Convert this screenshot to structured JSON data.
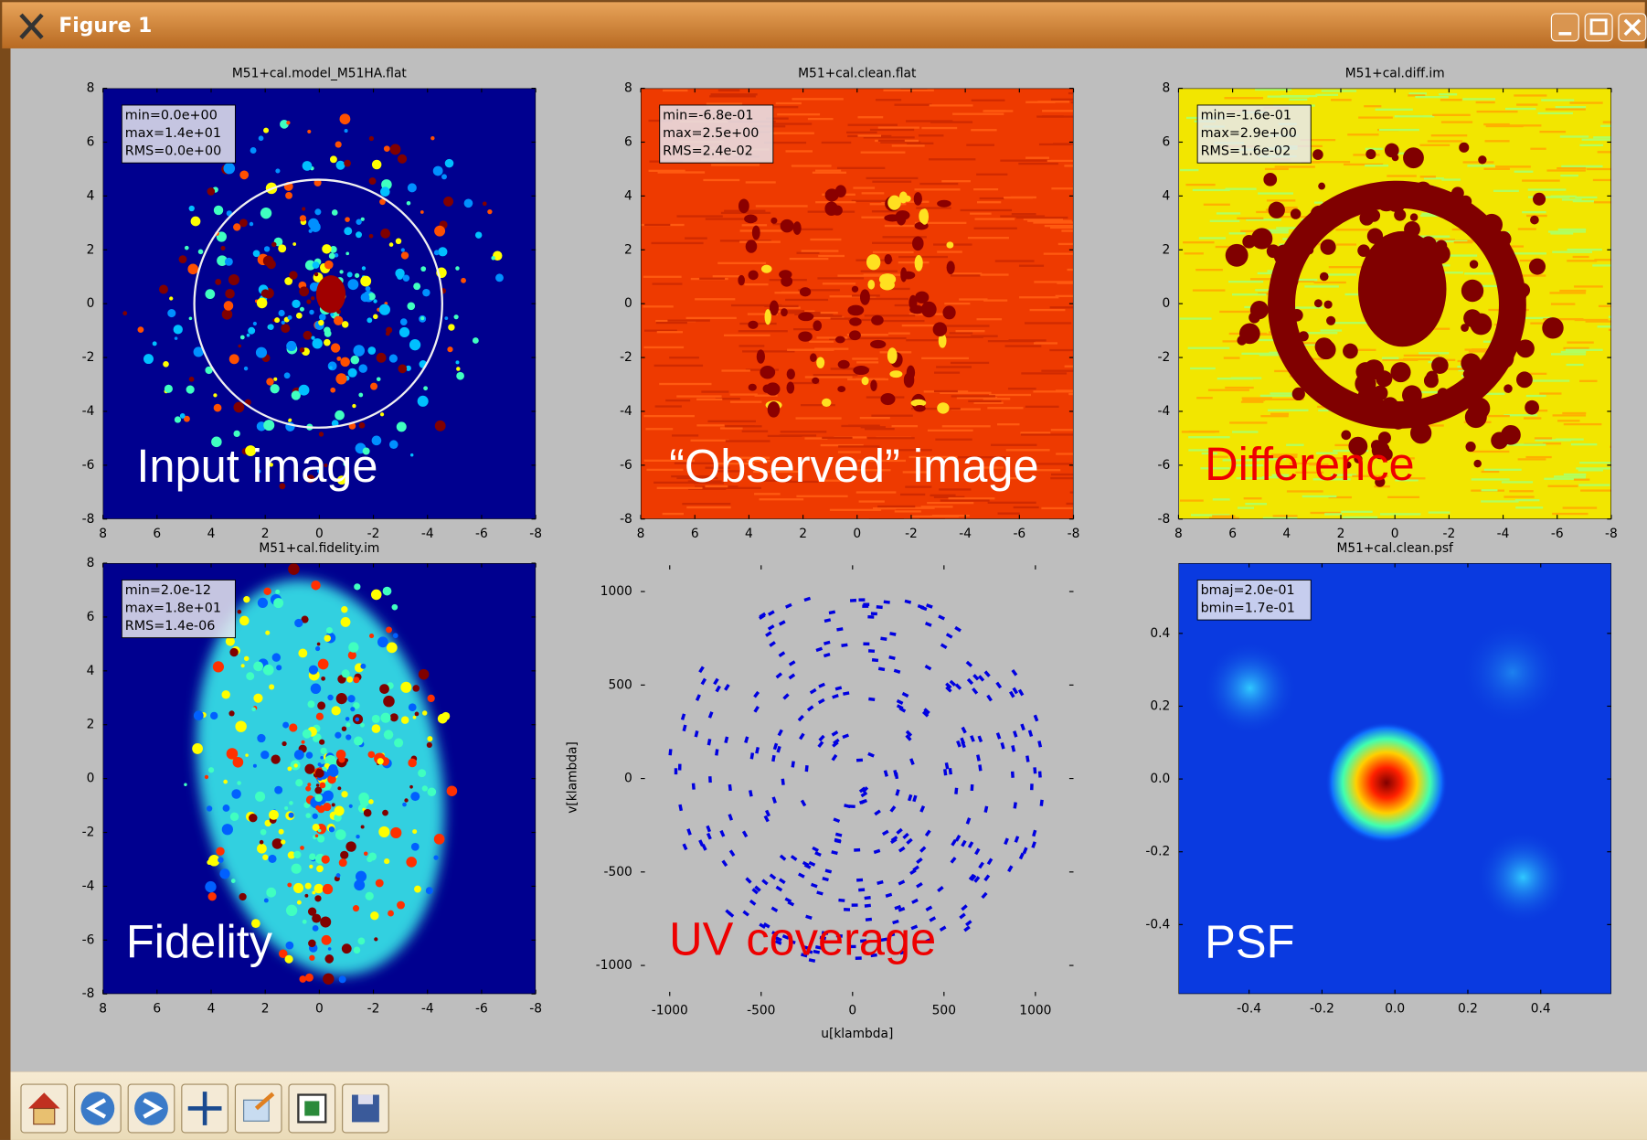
{
  "window": {
    "title": "Figure 1"
  },
  "panels": [
    {
      "title": "M51+cal.model_M51HA.flat",
      "stats": [
        "min=0.0e+00",
        "max=1.4e+01",
        "RMS=0.0e+00"
      ],
      "label": "Input image",
      "xticks": [
        "8",
        "6",
        "4",
        "2",
        "0",
        "-2",
        "-4",
        "-6",
        "-8"
      ],
      "yticks": [
        "8",
        "6",
        "4",
        "2",
        "0",
        "-2",
        "-4",
        "-6",
        "-8"
      ]
    },
    {
      "title": "M51+cal.clean.flat",
      "stats": [
        "min=-6.8e-01",
        "max=2.5e+00",
        "RMS=2.4e-02"
      ],
      "label": "“Observed” image",
      "xticks": [
        "8",
        "6",
        "4",
        "2",
        "0",
        "-2",
        "-4",
        "-6",
        "-8"
      ],
      "yticks": [
        "8",
        "6",
        "4",
        "2",
        "0",
        "-2",
        "-4",
        "-6",
        "-8"
      ]
    },
    {
      "title": "M51+cal.diff.im",
      "stats": [
        "min=-1.6e-01",
        "max=2.9e+00",
        "RMS=1.6e-02"
      ],
      "label": "Difference",
      "xticks": [
        "8",
        "6",
        "4",
        "2",
        "0",
        "-2",
        "-4",
        "-6",
        "-8"
      ],
      "yticks": [
        "8",
        "6",
        "4",
        "2",
        "0",
        "-2",
        "-4",
        "-6",
        "-8"
      ]
    },
    {
      "title": "M51+cal.fidelity.im",
      "stats": [
        "min=2.0e-12",
        "max=1.8e+01",
        "RMS=1.4e-06"
      ],
      "label": "Fidelity",
      "xticks": [
        "8",
        "6",
        "4",
        "2",
        "0",
        "-2",
        "-4",
        "-6",
        "-8"
      ],
      "yticks": [
        "8",
        "6",
        "4",
        "2",
        "0",
        "-2",
        "-4",
        "-6",
        "-8"
      ]
    },
    {
      "xlabel": "u[klambda]",
      "ylabel": "v[klambda]",
      "label": "UV coverage",
      "xticks": [
        "-1000",
        "-500",
        "0",
        "500",
        "1000"
      ],
      "yticks": [
        "1000",
        "500",
        "0",
        "-500",
        "-1000"
      ]
    },
    {
      "title": "M51+cal.clean.psf",
      "stats": [
        "bmaj=2.0e-01",
        "bmin=1.7e-01"
      ],
      "label": "PSF",
      "xticks": [
        "-0.4",
        "-0.2",
        "0.0",
        "0.2",
        "0.4"
      ],
      "yticks": [
        "0.4",
        "0.2",
        "0.0",
        "-0.2",
        "-0.4"
      ]
    }
  ]
}
